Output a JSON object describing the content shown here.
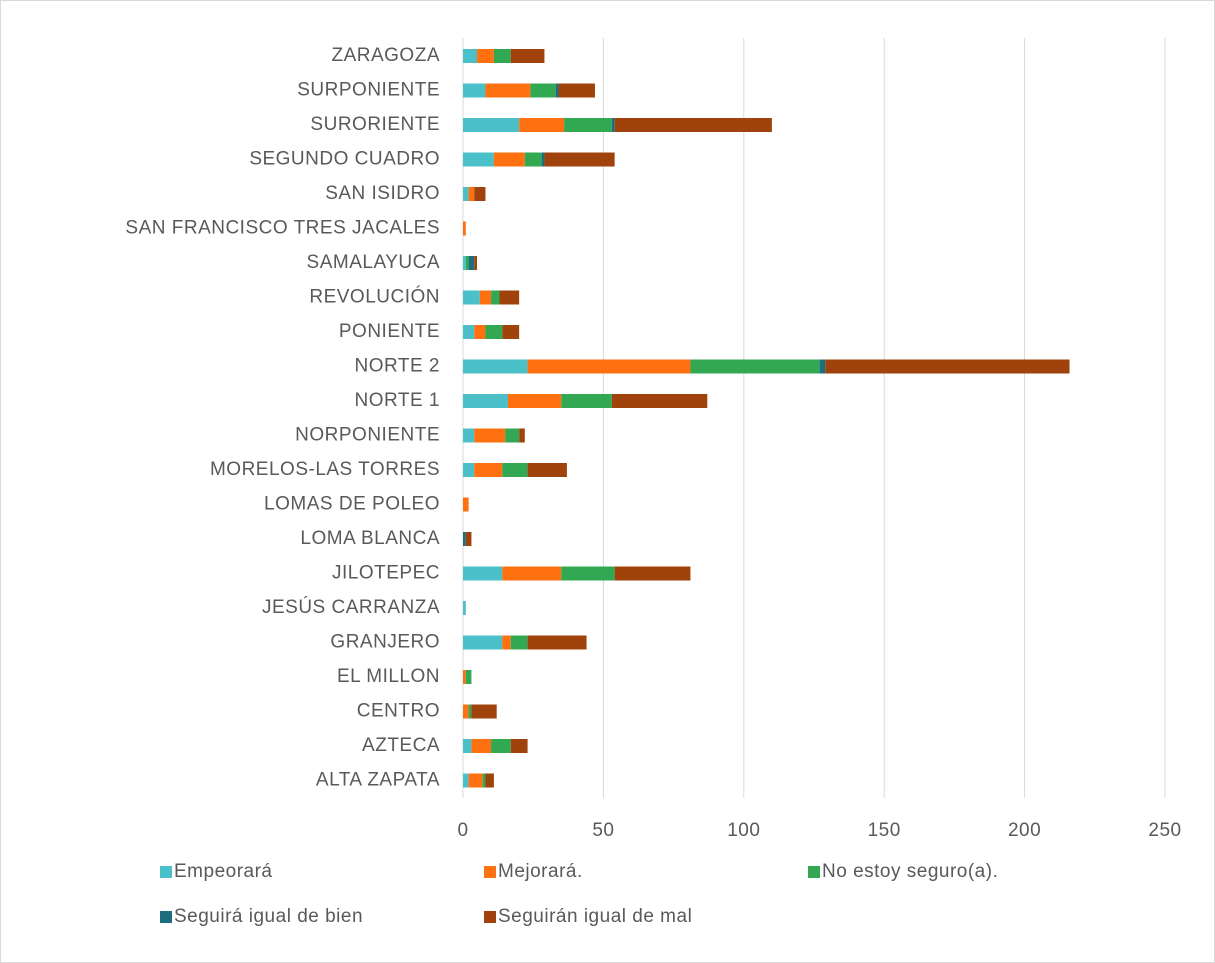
{
  "chart_data": {
    "type": "stacked-bar-horizontal",
    "categories": [
      "ZARAGOZA",
      "SURPONIENTE",
      "SURORIENTE",
      "SEGUNDO CUADRO",
      "SAN ISIDRO",
      "SAN FRANCISCO TRES JACALES",
      "SAMALAYUCA",
      "REVOLUCIÓN",
      "PONIENTE",
      "NORTE 2",
      "NORTE 1",
      "NORPONIENTE",
      "MORELOS-LAS TORRES",
      "LOMAS DE POLEO",
      "LOMA BLANCA",
      "JILOTEPEC",
      "JESÚS CARRANZA",
      "GRANJERO",
      "EL MILLON",
      "CENTRO",
      "AZTECA",
      "ALTA ZAPATA"
    ],
    "series": [
      {
        "name": "Empeorará",
        "color": "#4bc0c8",
        "values": [
          5,
          8,
          20,
          11,
          2,
          0,
          1,
          6,
          4,
          23,
          16,
          4,
          4,
          0,
          0,
          14,
          1,
          14,
          0,
          0,
          3,
          2
        ]
      },
      {
        "name": "Mejorará.",
        "color": "#ff7010",
        "values": [
          6,
          16,
          16,
          11,
          2,
          1,
          0,
          4,
          4,
          58,
          19,
          11,
          10,
          2,
          0,
          21,
          0,
          3,
          1,
          2,
          7,
          5
        ]
      },
      {
        "name": "No estoy seguro(a).",
        "color": "#33a853",
        "values": [
          6,
          9,
          17,
          6,
          0,
          0,
          1,
          3,
          6,
          46,
          18,
          5,
          9,
          0,
          0,
          19,
          0,
          6,
          2,
          1,
          7,
          1
        ]
      },
      {
        "name": "Seguirá igual de bien",
        "color": "#1b6e7e",
        "values": [
          0,
          1,
          1,
          1,
          0,
          0,
          2,
          0,
          0,
          2,
          0,
          0,
          0,
          0,
          1,
          0,
          0,
          0,
          0,
          0,
          0,
          0
        ]
      },
      {
        "name": "Seguirán igual de mal",
        "color": "#a0420b",
        "values": [
          12,
          13,
          56,
          25,
          4,
          0,
          1,
          7,
          6,
          87,
          34,
          2,
          14,
          0,
          2,
          27,
          0,
          21,
          0,
          9,
          6,
          3
        ]
      }
    ],
    "xlim": [
      0,
      250
    ],
    "xticks": [
      0,
      50,
      100,
      150,
      200,
      250
    ],
    "grid": true
  }
}
